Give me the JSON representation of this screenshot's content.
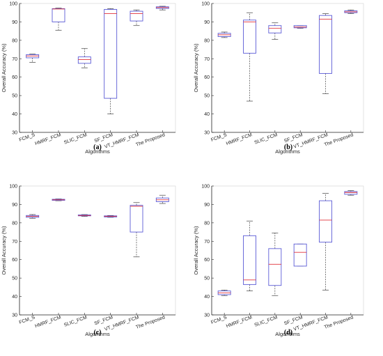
{
  "chart_data": [
    {
      "panel": "(a)",
      "type": "box",
      "xlabel": "Algorithms",
      "ylabel": "Overall Accuracy (%)",
      "ylim": [
        30,
        100
      ],
      "yticks": [
        30,
        40,
        50,
        60,
        70,
        80,
        90,
        100
      ],
      "categories": [
        "FCM_S",
        "HMRF_FCM",
        "SLIC_FCM",
        "SF_FCM",
        "VT_HMRF_FCM",
        "The Proposed"
      ],
      "boxes": [
        {
          "min": 68,
          "q1": 70.5,
          "median": 71.5,
          "q3": 72.2,
          "max": 72.5
        },
        {
          "min": 85.5,
          "q1": 90,
          "median": 97,
          "q3": 97.2,
          "max": 97.5
        },
        {
          "min": 65,
          "q1": 67.5,
          "median": 69.5,
          "q3": 71,
          "max": 75.5
        },
        {
          "min": 40,
          "q1": 48.5,
          "median": 94.5,
          "q3": 96.8,
          "max": 97.2
        },
        {
          "min": 88,
          "q1": 90.5,
          "median": 94.5,
          "q3": 95.8,
          "max": 96.5
        },
        {
          "min": 96.5,
          "q1": 97.3,
          "median": 97.8,
          "q3": 98.2,
          "max": 98.5
        }
      ]
    },
    {
      "panel": "(b)",
      "type": "box",
      "xlabel": "Algorithms",
      "ylabel": "Overall Accuracy (%)",
      "ylim": [
        30,
        100
      ],
      "yticks": [
        30,
        40,
        50,
        60,
        70,
        80,
        90,
        100
      ],
      "categories": [
        "FCM_S",
        "HMRF_FCM",
        "SLIC_FCM",
        "SF_FCM",
        "VT_HMRF_FCM",
        "The Proposed"
      ],
      "boxes": [
        {
          "min": 81.5,
          "q1": 82,
          "median": 83,
          "q3": 83.8,
          "max": 84.5
        },
        {
          "min": 47,
          "q1": 73,
          "median": 90,
          "q3": 91,
          "max": 95
        },
        {
          "min": 80.5,
          "q1": 84,
          "median": 86.5,
          "q3": 88,
          "max": 89.5
        },
        {
          "min": 86.5,
          "q1": 86.8,
          "median": 87.2,
          "q3": 88,
          "max": 88
        },
        {
          "min": 51,
          "q1": 62,
          "median": 91.5,
          "q3": 93.5,
          "max": 94.5
        },
        {
          "min": 94.5,
          "q1": 95,
          "median": 95.5,
          "q3": 96,
          "max": 96.5
        }
      ]
    },
    {
      "panel": "(c)",
      "type": "box",
      "xlabel": "Algorithms",
      "ylabel": "Overall Accuracy (%)",
      "ylim": [
        30,
        100
      ],
      "yticks": [
        30,
        40,
        50,
        60,
        70,
        80,
        90,
        100
      ],
      "categories": [
        "FCM_S",
        "HMRF_FCM",
        "SLIC_FCM",
        "SF_FCM",
        "VT_HMRF_FCM",
        "The Proposed"
      ],
      "boxes": [
        {
          "min": 82.5,
          "q1": 83,
          "median": 83.5,
          "q3": 84,
          "max": 84.5
        },
        {
          "min": 92,
          "q1": 92.2,
          "median": 92.5,
          "q3": 92.8,
          "max": 93
        },
        {
          "min": 83.5,
          "q1": 83.8,
          "median": 84,
          "q3": 84.3,
          "max": 84.5
        },
        {
          "min": 83,
          "q1": 83.2,
          "median": 83.5,
          "q3": 83.8,
          "max": 84
        },
        {
          "min": 61.5,
          "q1": 75,
          "median": 89,
          "q3": 89.5,
          "max": 91
        },
        {
          "min": 90.5,
          "q1": 91.5,
          "median": 92.5,
          "q3": 93.5,
          "max": 95
        }
      ]
    },
    {
      "panel": "(d)",
      "type": "box",
      "xlabel": "Algorithms",
      "ylabel": "Overall Accuracy (%)",
      "ylim": [
        30,
        100
      ],
      "yticks": [
        30,
        40,
        50,
        60,
        70,
        80,
        90,
        100
      ],
      "categories": [
        "FCM_S",
        "HMRF_FCM",
        "SLIC_FCM",
        "SF_FCM",
        "VT_HMRF_FCM",
        "The Proposed"
      ],
      "boxes": [
        {
          "min": 40.5,
          "q1": 41,
          "median": 42,
          "q3": 43,
          "max": 43.5
        },
        {
          "min": 43,
          "q1": 46.5,
          "median": 49,
          "q3": 73,
          "max": 81
        },
        {
          "min": 40.5,
          "q1": 46,
          "median": 57.5,
          "q3": 66,
          "max": 74.5
        },
        {
          "min": 56.5,
          "q1": 56.5,
          "median": 64,
          "q3": 68.5,
          "max": 68.5
        },
        {
          "min": 43.5,
          "q1": 69.5,
          "median": 81.5,
          "q3": 92,
          "max": 96
        },
        {
          "min": 95,
          "q1": 95.5,
          "median": 96.5,
          "q3": 97,
          "max": 97.5
        }
      ]
    }
  ],
  "colors": {
    "box": "#5b5bd6",
    "median": "#e0303a",
    "whisker": "#404040",
    "axis": "#262626",
    "text": "#262626"
  }
}
